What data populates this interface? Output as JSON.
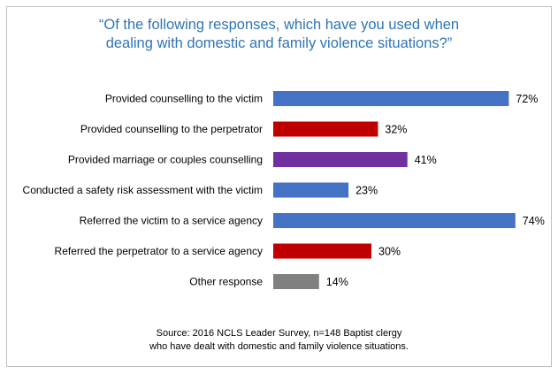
{
  "chart_data": {
    "type": "bar",
    "orientation": "horizontal",
    "title_lines": [
      "“Of the following responses, which have you used when",
      "dealing with domestic and family violence situations?”"
    ],
    "categories": [
      "Provided counselling to the victim",
      "Provided counselling to the perpetrator",
      "Provided marriage or couples counselling",
      "Conducted a safety risk assessment with the victim",
      "Referred the victim to a service agency",
      "Referred the perpetrator to a service agency",
      "Other response"
    ],
    "values": [
      72,
      32,
      41,
      23,
      74,
      30,
      14
    ],
    "data_labels": [
      "72%",
      "32%",
      "41%",
      "23%",
      "74%",
      "30%",
      "14%"
    ],
    "bar_colors": [
      "#4472c4",
      "#c00000",
      "#7030a0",
      "#4472c4",
      "#4472c4",
      "#c00000",
      "#808080"
    ],
    "xlim": [
      0,
      100
    ],
    "grid": false,
    "legend": "none",
    "source_lines": [
      "Source: 2016 NCLS Leader Survey, n=148 Baptist clergy",
      "who have dealt with domestic and family violence situations."
    ]
  },
  "colors": {
    "title": "#2e75b6",
    "text": "#000000",
    "border": "#bfbfbf"
  }
}
